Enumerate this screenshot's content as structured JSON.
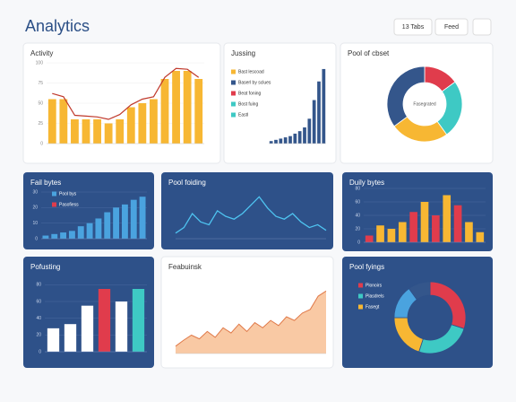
{
  "header": {
    "title": "Analytics",
    "buttons": [
      "13 Tabs",
      "Feed"
    ]
  },
  "panels": [
    {
      "title": "Activity",
      "type": "bar",
      "dark": false,
      "color": "#f7b733",
      "line_color": "#c0392b",
      "values": [
        55,
        55,
        30,
        30,
        30,
        25,
        30,
        45,
        50,
        55,
        80,
        90,
        90,
        80
      ],
      "line_values": [
        62,
        58,
        35,
        34,
        33,
        30,
        36,
        48,
        55,
        58,
        82,
        93,
        92,
        82
      ],
      "ylim": [
        0,
        100
      ],
      "yticks": [
        0,
        25,
        50,
        75,
        100
      ]
    },
    {
      "title": "Jussing",
      "type": "bar",
      "dark": false,
      "color": "#34568b",
      "values": [
        2,
        3,
        4,
        5,
        6,
        8,
        10,
        13,
        20,
        35,
        50,
        60
      ],
      "ylim": [
        0,
        65
      ],
      "legend": [
        {
          "label": "Bast lescoad",
          "color": "#f7b733"
        },
        {
          "label": "Baserl by sclues",
          "color": "#34568b"
        },
        {
          "label": "Beat foning",
          "color": "#e03c4c"
        },
        {
          "label": "Bost fuing",
          "color": "#3ec9c4"
        },
        {
          "label": "Eastl",
          "color": "#3ec9c4"
        }
      ]
    },
    {
      "title": "Pool of cbset",
      "type": "donut",
      "dark": false,
      "center": "Fasegrated",
      "values": [
        15,
        25,
        25,
        35
      ],
      "colors": [
        "#e03c4c",
        "#3ec9c4",
        "#f7b733",
        "#34568b"
      ]
    },
    {
      "title": "Fail bytes",
      "type": "bar",
      "dark": true,
      "color": "#4aa3df",
      "values": [
        2,
        3,
        4,
        5,
        8,
        10,
        13,
        17,
        20,
        22,
        25,
        27
      ],
      "ylim": [
        0,
        30
      ],
      "yticks": [
        0,
        10,
        20,
        30
      ],
      "legend": [
        {
          "label": "Pool bys",
          "color": "#4aa3df"
        },
        {
          "label": "Pasofiess",
          "color": "#e03c4c"
        }
      ]
    },
    {
      "title": "Pool foiding",
      "type": "line",
      "dark": true,
      "color": "#4ec3f0",
      "values": [
        10,
        20,
        45,
        30,
        25,
        50,
        40,
        35,
        45,
        60,
        75,
        55,
        40,
        35,
        45,
        30,
        20,
        25,
        15
      ],
      "ylim": [
        0,
        90
      ]
    },
    {
      "title": "Duily bytes",
      "type": "bar",
      "dark": true,
      "values": [
        10,
        25,
        20,
        30,
        45,
        60,
        40,
        70,
        55,
        30,
        15
      ],
      "ylim": [
        0,
        80
      ],
      "yticks": [
        0,
        20,
        40,
        60,
        80
      ],
      "colors": [
        "#e03c4c",
        "#f7b733",
        "#f7b733",
        "#f7b733",
        "#e03c4c",
        "#f7b733",
        "#e03c4c",
        "#f7b733",
        "#e03c4c",
        "#f7b733",
        "#f7b733"
      ]
    },
    {
      "title": "Pofusting",
      "type": "bar",
      "dark": true,
      "values": [
        28,
        33,
        55,
        75,
        60,
        75
      ],
      "ylim": [
        0,
        90
      ],
      "yticks": [
        0,
        20,
        40,
        60,
        80
      ],
      "colors": [
        "#ffffff",
        "#ffffff",
        "#ffffff",
        "#e03c4c",
        "#ffffff",
        "#3ec9c4"
      ]
    },
    {
      "title": "Feabuinsk",
      "type": "area",
      "dark": false,
      "color": "#f9c9a4",
      "line_color": "#e07a4a",
      "values": [
        10,
        18,
        25,
        20,
        30,
        22,
        35,
        28,
        40,
        30,
        42,
        35,
        45,
        38,
        50,
        45,
        55,
        60,
        78,
        85
      ],
      "ylim": [
        0,
        100
      ]
    },
    {
      "title": "Pool fyings",
      "type": "donut",
      "dark": true,
      "values": [
        30,
        25,
        20,
        15,
        10
      ],
      "colors": [
        "#e03c4c",
        "#3ec9c4",
        "#f7b733",
        "#4aa3df",
        "#34568b"
      ],
      "legend": [
        {
          "label": "Plonoirs",
          "color": "#e03c4c"
        },
        {
          "label": "Plasdrels",
          "color": "#3ec9c4"
        },
        {
          "label": "Fasegt",
          "color": "#f7b733"
        }
      ]
    }
  ]
}
